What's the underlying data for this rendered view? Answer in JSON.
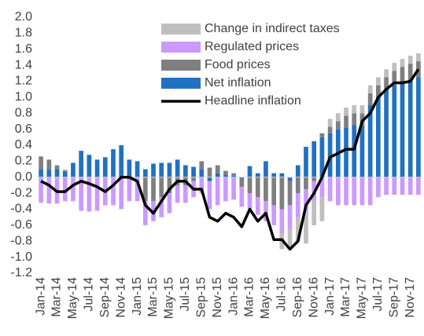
{
  "chart_data": {
    "type": "bar",
    "categories": [
      "Jan-14",
      null,
      "Mar-14",
      null,
      "May-14",
      null,
      "Jul-14",
      null,
      "Sep-14",
      null,
      "Nov-14",
      null,
      "Jan-15",
      null,
      "Mar-15",
      null,
      "May-15",
      null,
      "Jul-15",
      null,
      "Sep-15",
      null,
      "Nov-15",
      null,
      "Jan-16",
      null,
      "Mar-16",
      null,
      "May-16",
      null,
      "Jul-16",
      null,
      "Sep-16",
      null,
      "Nov-16",
      null,
      "Jan-17",
      null,
      "Mar-17",
      null,
      "May-17",
      null,
      "Jul-17",
      null,
      "Sep-17",
      null,
      "Nov-17",
      null
    ],
    "series": [
      {
        "name": "Net inflation",
        "color": "#2171c1",
        "values": [
          0.1,
          0.1,
          0.1,
          0.07,
          0.18,
          0.33,
          0.28,
          0.22,
          0.25,
          0.35,
          0.4,
          0.22,
          0.2,
          0.1,
          0.17,
          0.18,
          0.18,
          0.22,
          0.15,
          0.13,
          0.1,
          -0.05,
          0.05,
          0.03,
          0.02,
          -0.02,
          0.14,
          0.05,
          0.2,
          0.05,
          0.05,
          -0.05,
          0.15,
          0.38,
          0.45,
          0.5,
          0.55,
          0.6,
          0.62,
          0.65,
          0.65,
          0.9,
          1.0,
          1.1,
          1.15,
          1.2,
          1.22,
          1.25
        ]
      },
      {
        "name": "Food prices",
        "color": "#7f7f7f",
        "values": [
          0.16,
          0.12,
          0.05,
          0.02,
          0,
          0,
          0,
          0,
          0,
          0,
          0,
          0,
          0,
          -0.3,
          -0.3,
          -0.25,
          -0.2,
          -0.1,
          -0.1,
          -0.05,
          0.1,
          0.12,
          0.1,
          0.05,
          0.03,
          -0.1,
          -0.2,
          -0.25,
          -0.3,
          -0.35,
          -0.4,
          -0.3,
          -0.2,
          -0.15,
          -0.05,
          0.05,
          0.08,
          0.1,
          0.15,
          0.15,
          0.15,
          0.15,
          0.15,
          0.15,
          0.18,
          0.18,
          0.2,
          0.2
        ]
      },
      {
        "name": "Regulated prices",
        "color": "#cc99ff",
        "values": [
          -0.32,
          -0.33,
          -0.33,
          -0.3,
          -0.3,
          -0.42,
          -0.43,
          -0.42,
          -0.35,
          -0.35,
          -0.4,
          -0.3,
          -0.3,
          -0.3,
          -0.25,
          -0.25,
          -0.25,
          -0.22,
          -0.22,
          -0.2,
          -0.2,
          -0.35,
          -0.35,
          -0.3,
          -0.28,
          -0.25,
          -0.2,
          -0.22,
          -0.25,
          -0.25,
          -0.3,
          -0.3,
          -0.3,
          -0.28,
          -0.25,
          -0.25,
          -0.3,
          -0.35,
          -0.35,
          -0.35,
          -0.35,
          -0.35,
          -0.25,
          -0.22,
          -0.22,
          -0.22,
          -0.22,
          -0.22
        ]
      },
      {
        "name": "Change in indirect taxes",
        "color": "#bfbfbf",
        "values": [
          0,
          0,
          0,
          0,
          0,
          0,
          0,
          0,
          0,
          0,
          0,
          0,
          0,
          0,
          0,
          0,
          0,
          0,
          0,
          0,
          0,
          0,
          0,
          0,
          0,
          0,
          0,
          0,
          0,
          0,
          -0.2,
          -0.25,
          -0.3,
          -0.4,
          -0.3,
          -0.3,
          0.1,
          0.1,
          0.1,
          0.1,
          0.1,
          0.1,
          0.1,
          0.1,
          0.1,
          0.1,
          0.1,
          0.1
        ]
      },
      {
        "name": "Headline inflation",
        "type": "line",
        "color": "#000000",
        "values": [
          -0.05,
          -0.1,
          -0.18,
          -0.18,
          -0.1,
          -0.05,
          -0.08,
          -0.12,
          -0.18,
          -0.1,
          0.0,
          0.0,
          -0.05,
          -0.35,
          -0.45,
          -0.3,
          -0.15,
          -0.05,
          -0.05,
          -0.15,
          -0.15,
          -0.5,
          -0.55,
          -0.45,
          -0.5,
          -0.62,
          -0.4,
          -0.55,
          -0.45,
          -0.78,
          -0.78,
          -0.9,
          -0.8,
          -0.35,
          -0.2,
          0.0,
          0.25,
          0.3,
          0.35,
          0.35,
          0.7,
          0.8,
          1.0,
          1.1,
          1.18,
          1.18,
          1.2,
          1.35
        ]
      }
    ],
    "ylim": [
      -1.2,
      2.0
    ],
    "yticks": [
      {
        "value": 2.0,
        "label": "2.0"
      },
      1.8,
      1.6,
      1.4,
      1.2,
      {
        "value": 1.0,
        "label": "1.0"
      },
      0.8,
      0.6,
      0.4,
      0.2,
      {
        "value": 0,
        "label": "0.0"
      },
      -0.2,
      -0.4,
      -0.6,
      -0.8,
      {
        "value": -1.0,
        "label": "-1.0"
      },
      -1.2
    ]
  }
}
